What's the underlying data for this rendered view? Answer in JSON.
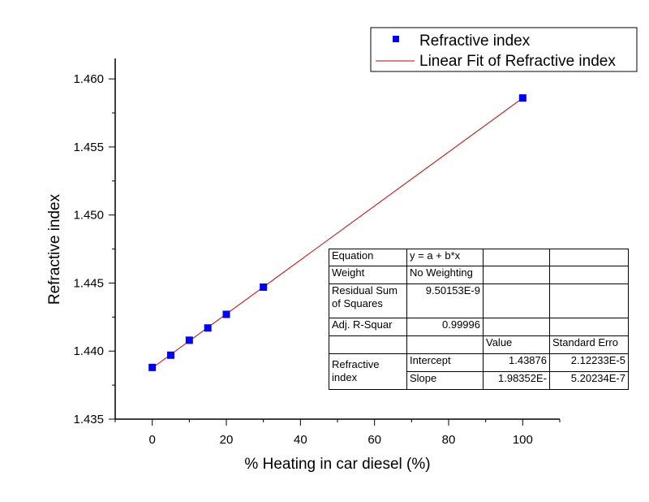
{
  "chart_data": {
    "type": "scatter",
    "xlabel": "% Heating in car diesel (%)",
    "ylabel": "Refractive index",
    "xlim": [
      -10,
      110
    ],
    "ylim": [
      1.435,
      1.4615
    ],
    "x_ticks": [
      0,
      20,
      40,
      60,
      80,
      100
    ],
    "x_tick_labels": [
      "0",
      "20",
      "40",
      "60",
      "80",
      "100"
    ],
    "y_ticks": [
      1.435,
      1.44,
      1.445,
      1.45,
      1.455,
      1.46
    ],
    "y_tick_labels": [
      "1.435",
      "1.440",
      "1.445",
      "1.450",
      "1.455",
      "1.460"
    ],
    "grid": false,
    "legend_position": "top-right",
    "series": [
      {
        "name": "Refractive index",
        "kind": "scatter",
        "color": "#0000ff",
        "x": [
          0,
          5,
          10,
          15,
          20,
          30,
          100
        ],
        "y": [
          1.4388,
          1.4397,
          1.4408,
          1.4417,
          1.4427,
          1.4447,
          1.4586
        ]
      },
      {
        "name": "Linear Fit of Refractive index",
        "kind": "line",
        "color": "#cc0000",
        "x": [
          0,
          100
        ],
        "y": [
          1.43876,
          1.458595
        ]
      }
    ]
  },
  "fit_table": {
    "equation_label": "Equation",
    "equation_value": "y = a + b*x",
    "weight_label": "Weight",
    "weight_value": "No Weighting",
    "rss_label": "Residual Sum of Squares",
    "rss_value": "9.50153E-9",
    "adjr_label": "Adj. R-Squar",
    "adjr_value": "0.99996",
    "col_value": "Value",
    "col_stderr": "Standard Erro",
    "group_label": "Refractive index",
    "intercept_label": "Intercept",
    "intercept_value": "1.43876",
    "intercept_err": "2.12233E-5",
    "slope_label": "Slope",
    "slope_value": "1.98352E-",
    "slope_err": "5.20234E-7"
  }
}
